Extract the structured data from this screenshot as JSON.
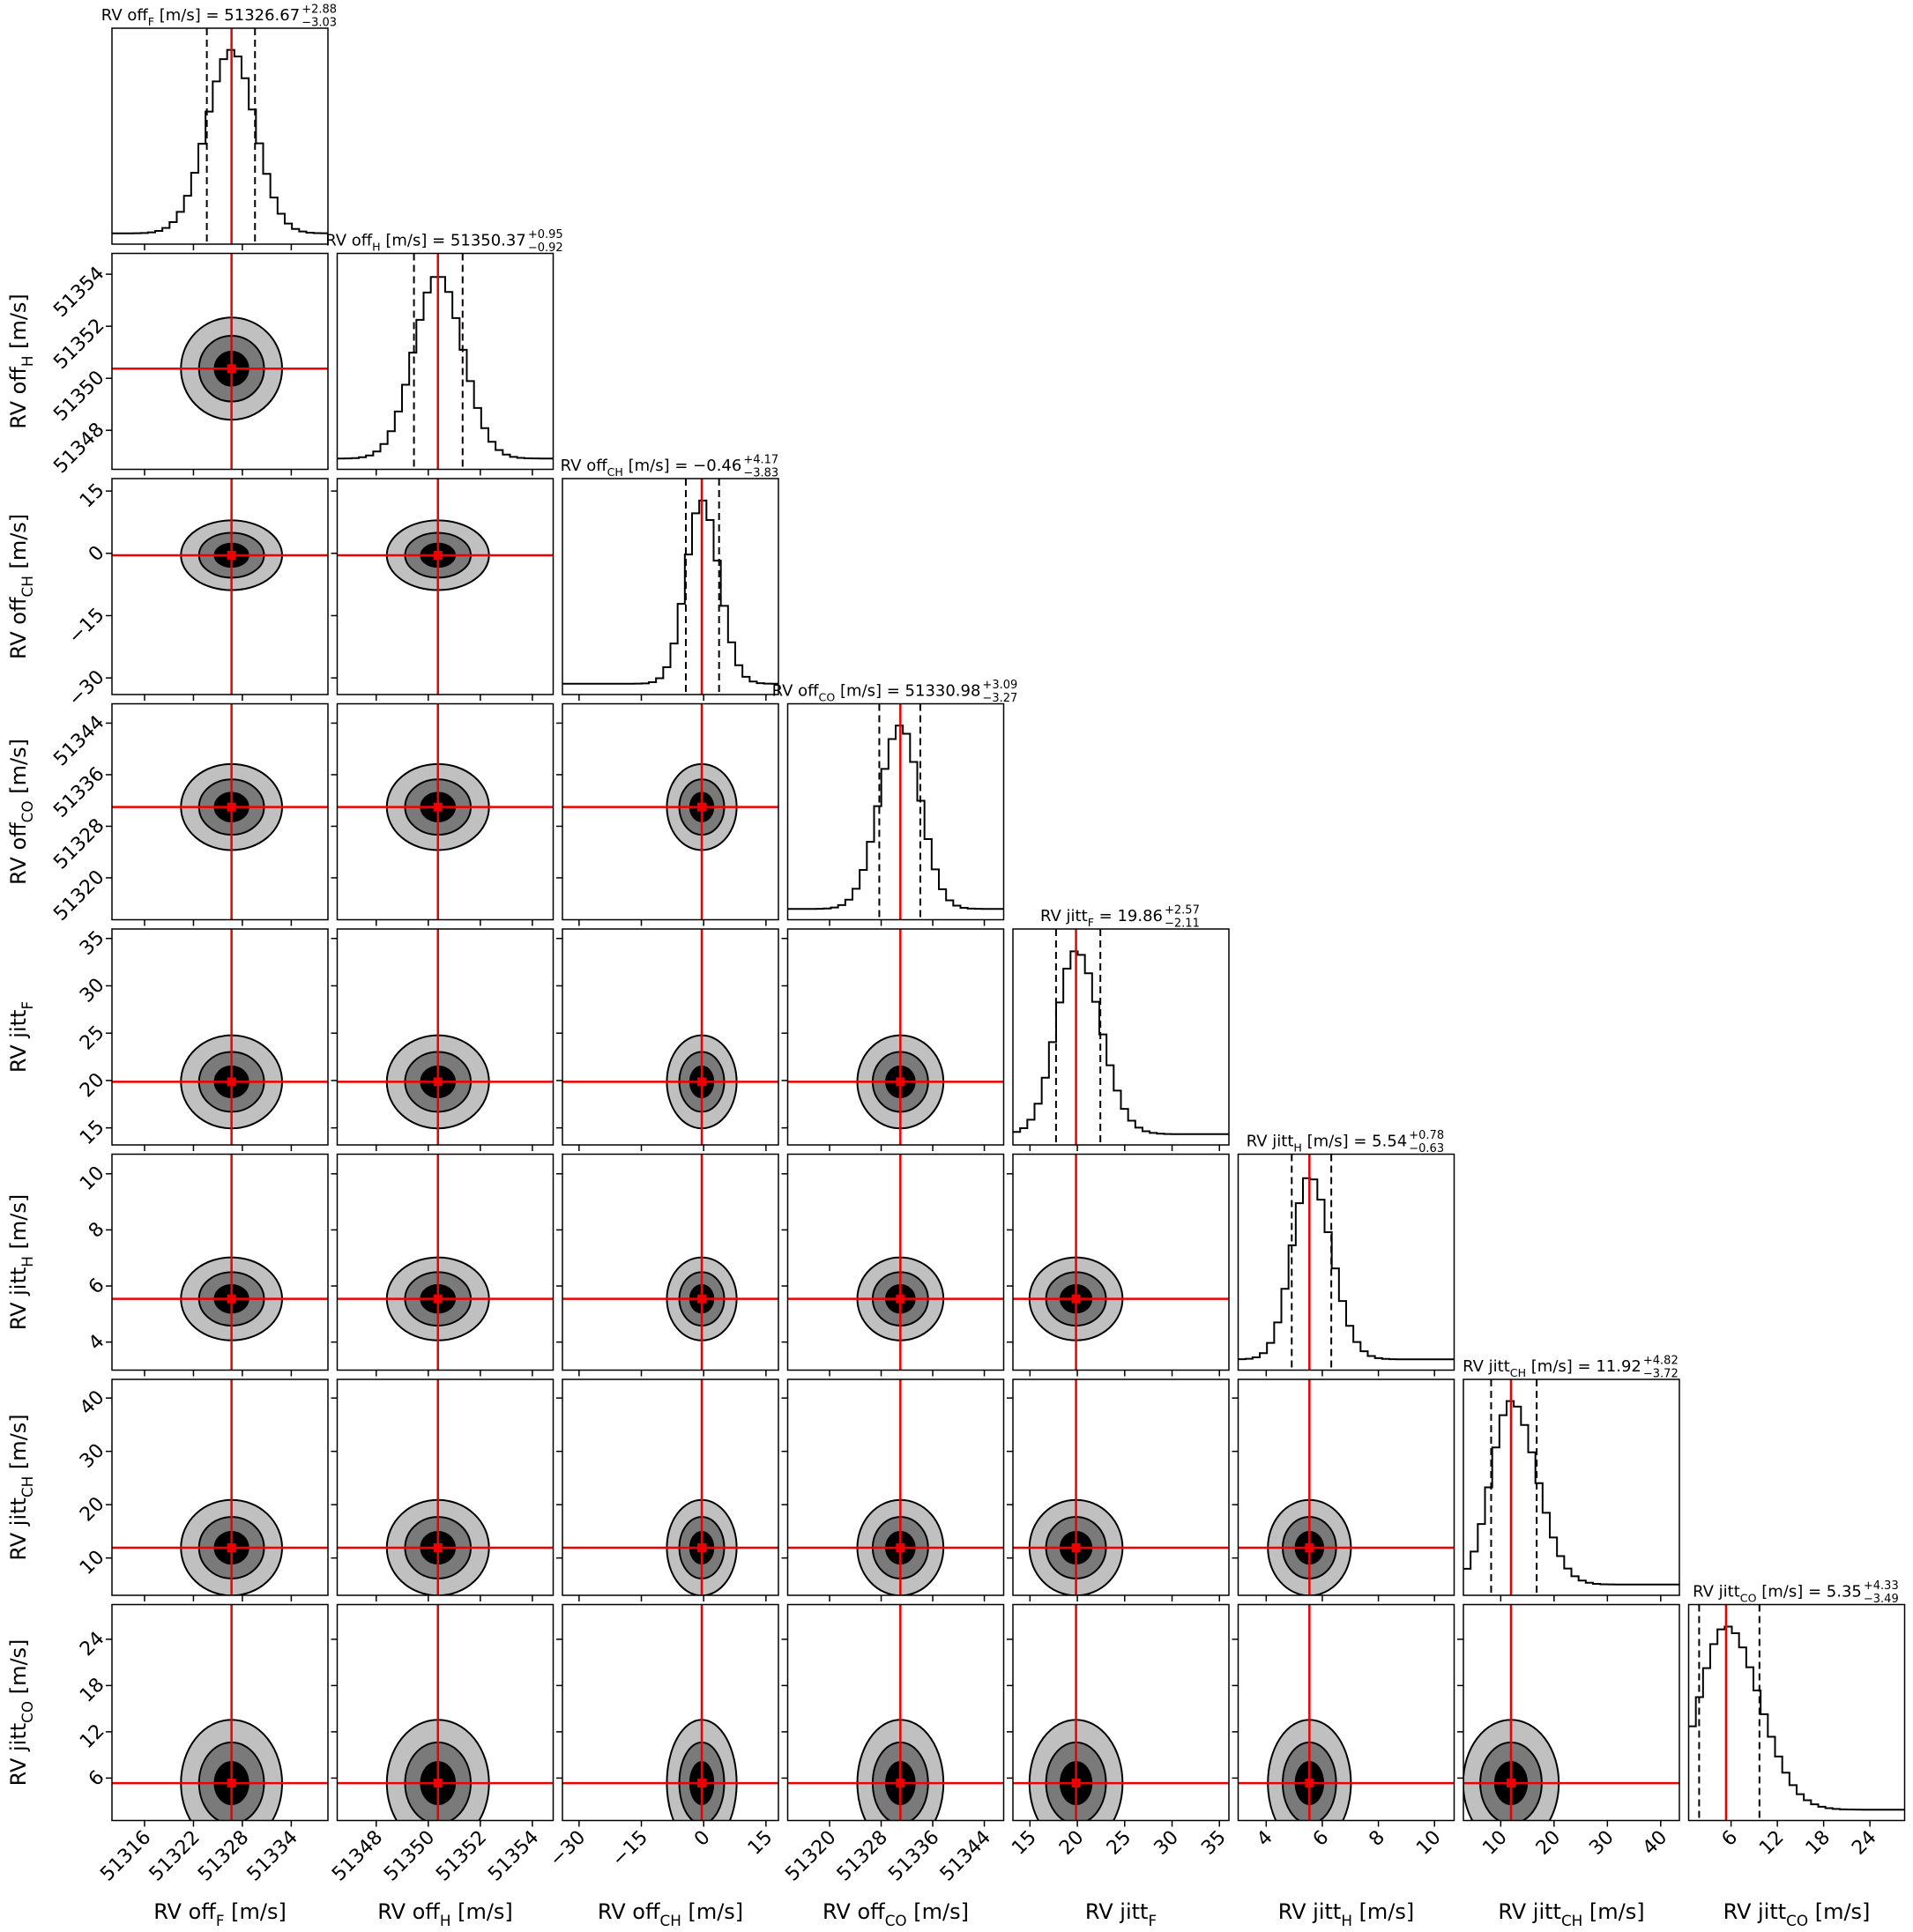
{
  "chart_data": {
    "type": "corner",
    "params": [
      {
        "name": "RV off",
        "sub": "F",
        "unit": " [m/s]",
        "median": 51326.67,
        "plus": 2.88,
        "minus": 3.03,
        "title_eq": " [m/s] = 51326.67",
        "plus_label": "+2.88",
        "minus_label": "−3.03",
        "lim": [
          51312,
          51338.5
        ],
        "ticks": [
          51316,
          51322,
          51328,
          51334
        ]
      },
      {
        "name": "RV off",
        "sub": "H",
        "unit": " [m/s]",
        "median": 51350.37,
        "plus": 0.95,
        "minus": 0.92,
        "title_eq": " [m/s] = 51350.37",
        "plus_label": "+0.95",
        "minus_label": "−0.92",
        "lim": [
          51346.5,
          51354.8
        ],
        "ticks": [
          51348,
          51350,
          51352,
          51354
        ]
      },
      {
        "name": "RV off",
        "sub": "CH",
        "unit": " [m/s]",
        "median": -0.46,
        "plus": 4.17,
        "minus": 3.83,
        "title_eq": " [m/s] = −0.46",
        "plus_label": "+4.17",
        "minus_label": "−3.83",
        "lim": [
          -34,
          18
        ],
        "ticks": [
          {
            "value": -30,
            "label": "−30"
          },
          {
            "value": -15,
            "label": "−15"
          },
          0,
          15
        ]
      },
      {
        "name": "RV off",
        "sub": "CO",
        "unit": " [m/s]",
        "median": 51330.98,
        "plus": 3.09,
        "minus": 3.27,
        "title_eq": " [m/s] = 51330.98",
        "plus_label": "+3.09",
        "minus_label": "−3.27",
        "lim": [
          51313.5,
          51347
        ],
        "ticks": [
          51320,
          51328,
          51336,
          51344
        ]
      },
      {
        "name": "RV jitt",
        "sub": "F",
        "median": 19.86,
        "plus": 2.57,
        "minus": 2.11,
        "title_eq": " = 19.86",
        "plus_label": "+2.57",
        "minus_label": "−2.11",
        "lim": [
          13.2,
          36
        ],
        "ticks": [
          15,
          20,
          25,
          30,
          35
        ]
      },
      {
        "name": "RV jitt",
        "sub": "H",
        "unit": " [m/s]",
        "median": 5.54,
        "plus": 0.78,
        "minus": 0.63,
        "title_eq": " [m/s] = 5.54",
        "plus_label": "+0.78",
        "minus_label": "−0.63",
        "lim": [
          3,
          10.7
        ],
        "ticks": [
          4,
          6,
          8,
          10
        ]
      },
      {
        "name": "RV jitt",
        "sub": "CH",
        "unit": " [m/s]",
        "median": 11.92,
        "plus": 4.82,
        "minus": 3.72,
        "title_eq": " [m/s] = 11.92",
        "plus_label": "+4.82",
        "minus_label": "−3.72",
        "lim": [
          3,
          43.5
        ],
        "ticks": [
          10,
          20,
          30,
          40
        ]
      },
      {
        "name": "RV jitt",
        "sub": "CO",
        "unit": " [m/s]",
        "median": 5.35,
        "plus": 4.33,
        "minus": 3.49,
        "title_eq": " [m/s] = 5.35",
        "plus_label": "+4.33",
        "minus_label": "−3.49",
        "lim": [
          0.5,
          28.5
        ],
        "ticks": [
          6,
          12,
          18,
          24
        ]
      }
    ]
  }
}
